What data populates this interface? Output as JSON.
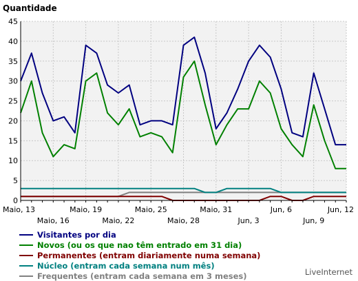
{
  "brand": "LiveInternet",
  "chart_data": {
    "type": "line",
    "title": "",
    "ylabel": "Quantidade",
    "xlabel": "",
    "ylim": [
      0,
      45
    ],
    "yticks": [
      0,
      5,
      10,
      15,
      20,
      25,
      30,
      35,
      40,
      45
    ],
    "grid": true,
    "legend_position": "bottom",
    "x_ticks_upper": [
      "Maio, 13",
      "Maio, 19",
      "Maio, 25",
      "Maio, 31",
      "Jun, 6",
      "Jun, 12"
    ],
    "x_ticks_lower": [
      "Maio, 16",
      "Maio, 22",
      "Maio, 28",
      "Jun, 3",
      "Jun, 9"
    ],
    "x": [
      "Maio, 13",
      "Maio, 14",
      "Maio, 15",
      "Maio, 16",
      "Maio, 17",
      "Maio, 18",
      "Maio, 19",
      "Maio, 20",
      "Maio, 21",
      "Maio, 22",
      "Maio, 23",
      "Maio, 24",
      "Maio, 25",
      "Maio, 26",
      "Maio, 27",
      "Maio, 28",
      "Maio, 29",
      "Maio, 30",
      "Maio, 31",
      "Jun, 1",
      "Jun, 2",
      "Jun, 3",
      "Jun, 4",
      "Jun, 5",
      "Jun, 6",
      "Jun, 7",
      "Jun, 8",
      "Jun, 9",
      "Jun, 10",
      "Jun, 11",
      "Jun, 12"
    ],
    "series": [
      {
        "name": "Visitantes por dia",
        "color": "#000080",
        "values": [
          30,
          37,
          27,
          20,
          21,
          17,
          39,
          37,
          29,
          27,
          29,
          19,
          20,
          20,
          19,
          39,
          41,
          32,
          18,
          22,
          28,
          35,
          39,
          36,
          28,
          17,
          16,
          32,
          23,
          14,
          14
        ]
      },
      {
        "name": "Novos (ou os que nao têm entrado em 31 dia)",
        "color": "#008000",
        "values": [
          22,
          30,
          17,
          11,
          14,
          13,
          30,
          32,
          22,
          19,
          23,
          16,
          17,
          16,
          12,
          31,
          35,
          24,
          14,
          19,
          23,
          23,
          30,
          27,
          18,
          14,
          11,
          24,
          15,
          8,
          8
        ]
      },
      {
        "name": "Permanentes (entram diariamente numa semana)",
        "color": "#800000",
        "values": [
          1,
          1,
          1,
          1,
          1,
          1,
          1,
          1,
          1,
          1,
          1,
          1,
          1,
          1,
          0,
          0,
          0,
          0,
          0,
          0,
          0,
          0,
          0,
          1,
          1,
          0,
          0,
          1,
          1,
          1,
          1
        ]
      },
      {
        "name": "Núcleo (entram cada semana num mês)",
        "color": "#008080",
        "values": [
          3,
          3,
          3,
          3,
          3,
          3,
          3,
          3,
          3,
          3,
          3,
          3,
          3,
          3,
          3,
          3,
          3,
          2,
          2,
          3,
          3,
          3,
          3,
          3,
          2,
          2,
          2,
          2,
          2,
          2,
          2
        ]
      },
      {
        "name": "Frequentes (entram cada semana em 3 meses)",
        "color": "#808080",
        "values": [
          1,
          1,
          1,
          1,
          1,
          1,
          1,
          1,
          1,
          1,
          2,
          2,
          2,
          2,
          2,
          2,
          2,
          2,
          2,
          2,
          2,
          2,
          2,
          2,
          2,
          2,
          2,
          2,
          2,
          2,
          2
        ]
      }
    ]
  }
}
